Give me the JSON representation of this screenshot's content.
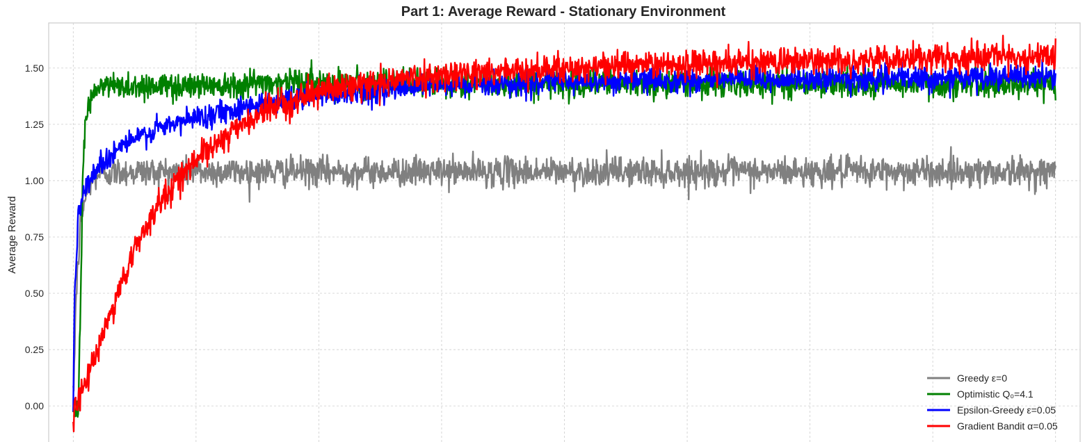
{
  "chart_data": {
    "type": "line",
    "title": "Part 1: Average Reward - Stationary Environment",
    "xlabel": "",
    "ylabel": "Average Reward",
    "xlim": [
      -200,
      8200
    ],
    "ylim": [
      -0.16,
      1.7
    ],
    "x_gridlines": [
      0,
      1000,
      2000,
      3000,
      4000,
      5000,
      6000,
      7000,
      8000
    ],
    "yticks": [
      0.0,
      0.25,
      0.5,
      0.75,
      1.0,
      1.25,
      1.5
    ],
    "ytick_labels": [
      "0.00",
      "0.25",
      "0.50",
      "0.75",
      "1.00",
      "1.25",
      "1.50"
    ],
    "grid": true,
    "legend_position": "bottom-right",
    "series": [
      {
        "name": "Greedy ε=0",
        "color": "#808080",
        "noise": 0.032,
        "points": [
          [
            0,
            0.0
          ],
          [
            20,
            0.45
          ],
          [
            60,
            0.82
          ],
          [
            120,
            0.98
          ],
          [
            200,
            1.03
          ],
          [
            400,
            1.04
          ],
          [
            1000,
            1.04
          ],
          [
            4000,
            1.04
          ],
          [
            8000,
            1.04
          ]
        ]
      },
      {
        "name": "Optimistic Q₀=4.1",
        "color": "#008000",
        "noise": 0.03,
        "points": [
          [
            0,
            -0.02
          ],
          [
            40,
            -0.02
          ],
          [
            60,
            0.5
          ],
          [
            80,
            1.1
          ],
          [
            110,
            1.3
          ],
          [
            150,
            1.38
          ],
          [
            250,
            1.42
          ],
          [
            800,
            1.42
          ],
          [
            1800,
            1.44
          ],
          [
            3000,
            1.43
          ],
          [
            5000,
            1.43
          ],
          [
            8000,
            1.43
          ]
        ]
      },
      {
        "name": "Epsilon-Greedy ε=0.05",
        "color": "#0000ff",
        "noise": 0.026,
        "points": [
          [
            0,
            -0.02
          ],
          [
            10,
            0.5
          ],
          [
            40,
            0.85
          ],
          [
            100,
            0.97
          ],
          [
            200,
            1.06
          ],
          [
            400,
            1.16
          ],
          [
            700,
            1.23
          ],
          [
            1000,
            1.28
          ],
          [
            1500,
            1.34
          ],
          [
            2000,
            1.38
          ],
          [
            2500,
            1.4
          ],
          [
            3000,
            1.42
          ],
          [
            4000,
            1.44
          ],
          [
            6000,
            1.45
          ],
          [
            8000,
            1.46
          ]
        ]
      },
      {
        "name": "Gradient Bandit α=0.05",
        "color": "#ff0000",
        "noise": 0.03,
        "points": [
          [
            0,
            -0.04
          ],
          [
            50,
            0.04
          ],
          [
            150,
            0.17
          ],
          [
            250,
            0.33
          ],
          [
            400,
            0.55
          ],
          [
            550,
            0.76
          ],
          [
            700,
            0.9
          ],
          [
            900,
            1.04
          ],
          [
            1100,
            1.14
          ],
          [
            1300,
            1.22
          ],
          [
            1600,
            1.32
          ],
          [
            2000,
            1.4
          ],
          [
            2500,
            1.44
          ],
          [
            3000,
            1.47
          ],
          [
            4000,
            1.5
          ],
          [
            5000,
            1.52
          ],
          [
            6000,
            1.53
          ],
          [
            7000,
            1.54
          ],
          [
            8000,
            1.55
          ]
        ]
      }
    ]
  }
}
